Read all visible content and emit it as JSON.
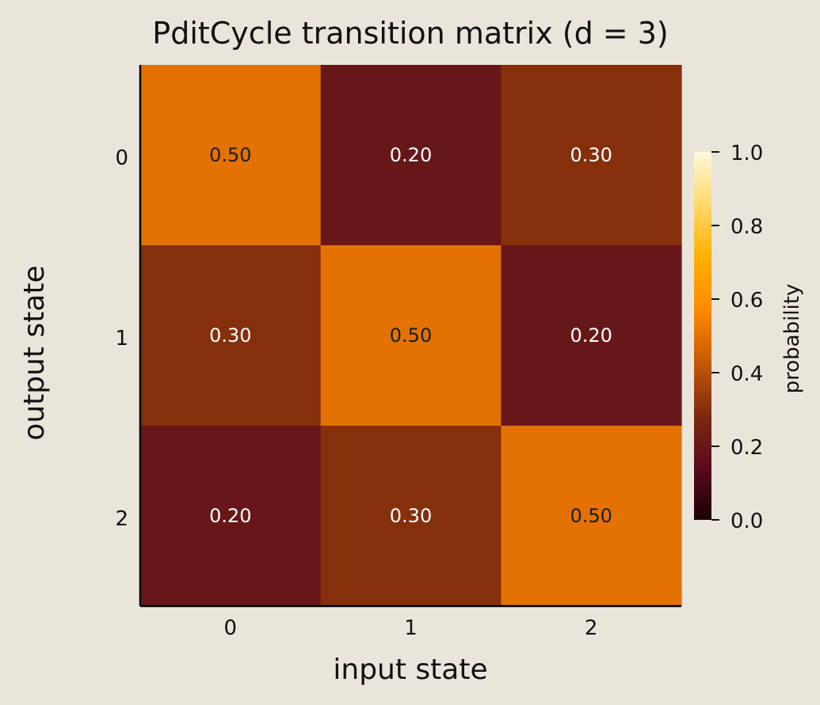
{
  "chart_data": {
    "type": "heatmap",
    "title": "PditCycle transition matrix (d = 3)",
    "xlabel": "input state",
    "ylabel": "output state",
    "x_categories": [
      "0",
      "1",
      "2"
    ],
    "y_categories": [
      "0",
      "1",
      "2"
    ],
    "values": [
      [
        0.5,
        0.2,
        0.3
      ],
      [
        0.3,
        0.5,
        0.2
      ],
      [
        0.2,
        0.3,
        0.5
      ]
    ],
    "cell_labels": [
      [
        "0.50",
        "0.20",
        "0.30"
      ],
      [
        "0.30",
        "0.50",
        "0.20"
      ],
      [
        "0.20",
        "0.30",
        "0.50"
      ]
    ],
    "colormap": "afmhot-like",
    "vmin": 0.0,
    "vmax": 1.0,
    "colorbar": {
      "label": "probability",
      "ticks": [
        0.0,
        0.2,
        0.4,
        0.6,
        0.8,
        1.0
      ],
      "tick_labels": [
        "0.0",
        "0.2",
        "0.4",
        "0.6",
        "0.8",
        "1.0"
      ],
      "stops": [
        "#1a0005",
        "#5a0a20",
        "#7e2a0c",
        "#c65a06",
        "#ff8a00",
        "#ffb000",
        "#ffd96a",
        "#fff8dc"
      ]
    },
    "grid": false
  },
  "colors": {
    "background": "#e9e5db",
    "axis": "#000000",
    "low_value_text": "#ffffff",
    "high_value_text": "#1c1c1c"
  }
}
